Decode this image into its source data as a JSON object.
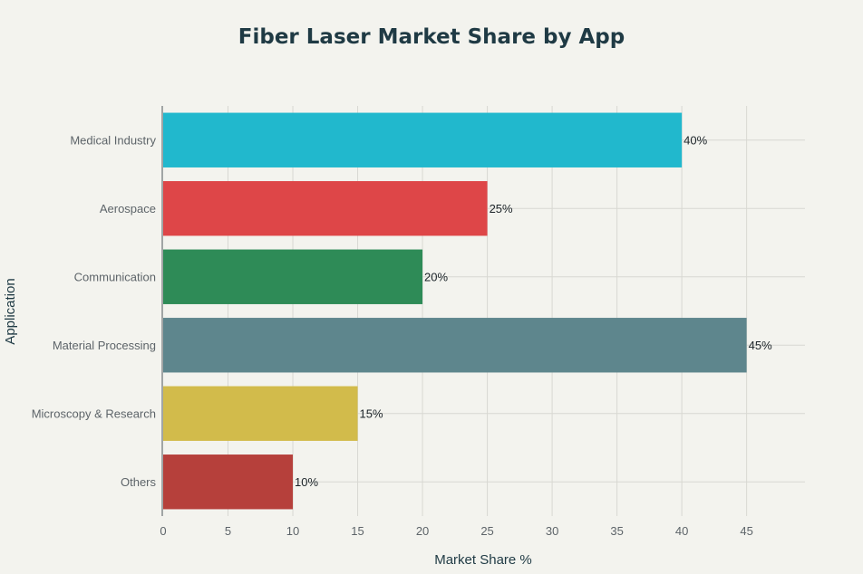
{
  "chart_data": {
    "type": "bar",
    "orientation": "horizontal",
    "title": "Fiber Laser Market Share by App",
    "xlabel": "Market Share %",
    "ylabel": "Application",
    "categories": [
      "Medical Industry",
      "Aerospace",
      "Communication",
      "Material Processing",
      "Microscopy & Research",
      "Others"
    ],
    "values": [
      40,
      25,
      20,
      45,
      15,
      10
    ],
    "data_labels": [
      "40%",
      "25%",
      "20%",
      "45%",
      "15%",
      "10%"
    ],
    "colors": [
      "#21b8cd",
      "#de4648",
      "#2e8b57",
      "#5e868d",
      "#d2bb4b",
      "#b6403b"
    ],
    "xlim": [
      0,
      49.5
    ],
    "xticks": [
      0,
      5,
      10,
      15,
      20,
      25,
      30,
      35,
      40,
      45
    ],
    "xtick_labels": [
      "0",
      "5",
      "10",
      "15",
      "20",
      "25",
      "30",
      "35",
      "40",
      "45"
    ],
    "grid": true,
    "legend": "none"
  }
}
